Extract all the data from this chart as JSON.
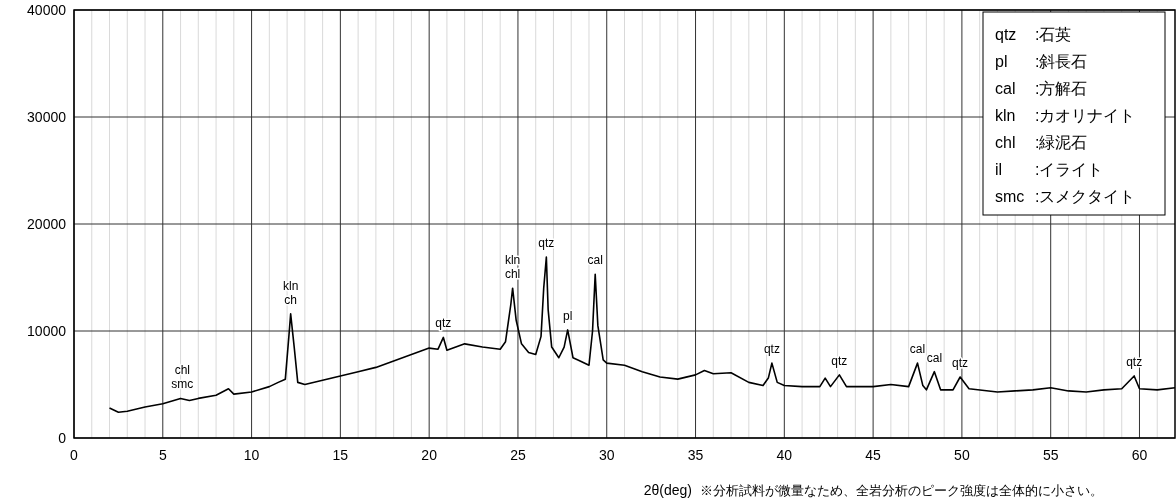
{
  "chart_data": {
    "type": "line",
    "xlabel": "2θ(deg)",
    "xlim": [
      0,
      62
    ],
    "ylim": [
      0,
      40000
    ],
    "xticks": [
      0,
      {
        "value": 1,
        "label": null
      },
      {
        "value": 2,
        "label": null
      },
      {
        "value": 3,
        "label": null
      },
      {
        "value": 4,
        "label": null
      },
      5,
      {
        "value": 6,
        "label": null
      },
      {
        "value": 7,
        "label": null
      },
      {
        "value": 8,
        "label": null
      },
      {
        "value": 9,
        "label": null
      },
      10,
      {
        "value": 11,
        "label": null
      },
      {
        "value": 12,
        "label": null
      },
      {
        "value": 13,
        "label": null
      },
      {
        "value": 14,
        "label": null
      },
      15,
      {
        "value": 16,
        "label": null
      },
      {
        "value": 17,
        "label": null
      },
      {
        "value": 18,
        "label": null
      },
      {
        "value": 19,
        "label": null
      },
      20,
      {
        "value": 21,
        "label": null
      },
      {
        "value": 22,
        "label": null
      },
      {
        "value": 23,
        "label": null
      },
      {
        "value": 24,
        "label": null
      },
      25,
      {
        "value": 26,
        "label": null
      },
      {
        "value": 27,
        "label": null
      },
      {
        "value": 28,
        "label": null
      },
      {
        "value": 29,
        "label": null
      },
      30,
      {
        "value": 31,
        "label": null
      },
      {
        "value": 32,
        "label": null
      },
      {
        "value": 33,
        "label": null
      },
      {
        "value": 34,
        "label": null
      },
      35,
      {
        "value": 36,
        "label": null
      },
      {
        "value": 37,
        "label": null
      },
      {
        "value": 38,
        "label": null
      },
      {
        "value": 39,
        "label": null
      },
      40,
      {
        "value": 41,
        "label": null
      },
      {
        "value": 42,
        "label": null
      },
      {
        "value": 43,
        "label": null
      },
      {
        "value": 44,
        "label": null
      },
      45,
      {
        "value": 46,
        "label": null
      },
      {
        "value": 47,
        "label": null
      },
      {
        "value": 48,
        "label": null
      },
      {
        "value": 49,
        "label": null
      },
      50,
      {
        "value": 51,
        "label": null
      },
      {
        "value": 52,
        "label": null
      },
      {
        "value": 53,
        "label": null
      },
      {
        "value": 54,
        "label": null
      },
      55,
      {
        "value": 56,
        "label": null
      },
      {
        "value": 57,
        "label": null
      },
      {
        "value": 58,
        "label": null
      },
      {
        "value": 59,
        "label": null
      },
      60,
      {
        "value": 61,
        "label": null
      }
    ],
    "yticks": [
      0,
      10000,
      20000,
      30000,
      40000
    ],
    "grid": true,
    "line_style": "solid",
    "x": [
      2,
      2.5,
      3,
      4,
      5,
      6,
      6.5,
      7,
      8,
      8.7,
      9,
      10,
      11,
      11.5,
      11.9,
      12.1,
      12.2,
      12.4,
      12.6,
      13,
      14,
      15,
      16,
      17,
      18,
      19,
      20,
      20.5,
      20.8,
      21,
      22,
      23,
      24,
      24.3,
      24.6,
      24.7,
      24.9,
      25.2,
      25.6,
      26,
      26.3,
      26.45,
      26.6,
      26.7,
      26.9,
      27.3,
      27.6,
      27.8,
      28.1,
      28.5,
      29,
      29.2,
      29.35,
      29.5,
      29.8,
      30,
      31,
      32,
      33,
      34,
      35,
      35.5,
      36,
      37,
      38,
      38.8,
      39.1,
      39.3,
      39.6,
      40,
      41,
      42,
      42.3,
      42.6,
      43.1,
      43.5,
      45,
      46,
      47,
      47.5,
      47.8,
      48,
      48.45,
      48.8,
      49.5,
      49.9,
      50.4,
      52,
      53,
      54,
      55,
      56,
      57,
      58,
      59,
      59.7,
      60,
      61,
      62
    ],
    "series": [
      {
        "color": "#000000",
        "values": [
          2800,
          2400,
          2500,
          2900,
          3200,
          3700,
          3500,
          3700,
          4000,
          4600,
          4100,
          4300,
          4800,
          5200,
          5500,
          9500,
          11600,
          8500,
          5200,
          5000,
          5400,
          5800,
          6200,
          6600,
          7200,
          7800,
          8400,
          8300,
          9400,
          8200,
          8800,
          8500,
          8300,
          9000,
          12500,
          14000,
          11000,
          8800,
          8000,
          7800,
          9500,
          14000,
          16900,
          12000,
          8500,
          7500,
          8500,
          10100,
          7500,
          7200,
          6800,
          10000,
          15300,
          10500,
          7300,
          7000,
          6800,
          6200,
          5700,
          5500,
          5900,
          6300,
          6000,
          6100,
          5200,
          4900,
          5600,
          7000,
          5200,
          4900,
          4800,
          4800,
          5600,
          4800,
          5900,
          4800,
          4800,
          5000,
          4800,
          7000,
          4900,
          4500,
          6200,
          4500,
          4500,
          5700,
          4600,
          4300,
          4400,
          4500,
          4700,
          4400,
          4300,
          4500,
          4600,
          5800,
          4600,
          4500,
          4700
        ]
      }
    ],
    "annotations": [
      {
        "text": "chl\nsmc",
        "x": 6.1,
        "y": 3700
      },
      {
        "text": "kln\nch",
        "x": 12.2,
        "y": 11600
      },
      {
        "text": "qtz",
        "x": 20.8,
        "y": 9400
      },
      {
        "text": "kln\nchl",
        "x": 24.7,
        "y": 14000
      },
      {
        "text": "qtz",
        "x": 26.6,
        "y": 16900
      },
      {
        "text": "pl",
        "x": 27.8,
        "y": 10100
      },
      {
        "text": "cal",
        "x": 29.35,
        "y": 15300
      },
      {
        "text": "qtz",
        "x": 39.3,
        "y": 7000
      },
      {
        "text": "qtz",
        "x": 43.1,
        "y": 5900
      },
      {
        "text": "cal",
        "x": 47.5,
        "y": 7000
      },
      {
        "text": "cal",
        "x": 48.45,
        "y": 6200
      },
      {
        "text": "qtz",
        "x": 49.9,
        "y": 5700
      },
      {
        "text": "qtz",
        "x": 59.7,
        "y": 5800
      },
      "qtz :石英",
      "pl :斜長石",
      "cal :方解石",
      "kln :カオリナイト",
      "chl :緑泥石",
      "il :イライト",
      "smc :スメクタイト",
      "※分析試料が微量なため、全岩分析のピーク強度は全体的に小さい。"
    ]
  }
}
